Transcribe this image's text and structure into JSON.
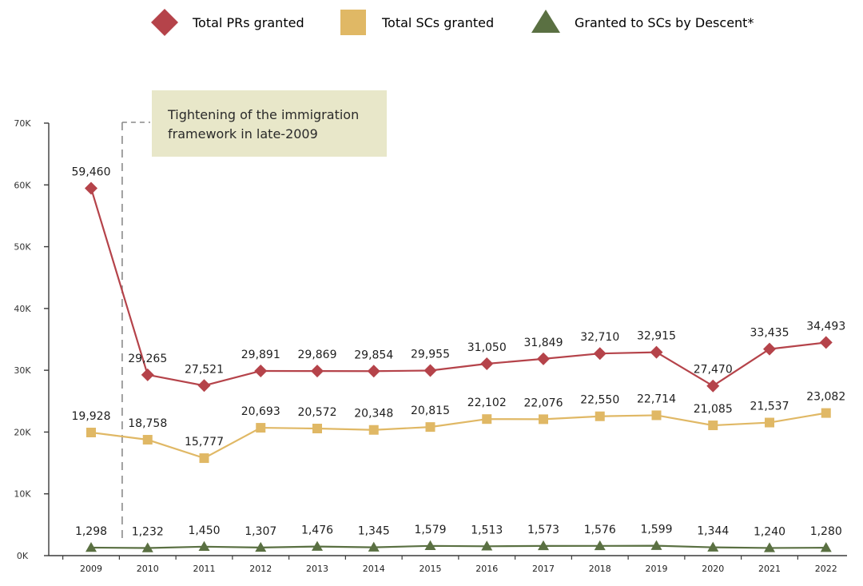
{
  "chart_data": {
    "type": "line",
    "title": "",
    "xlabel": "",
    "ylabel": "",
    "ylim": [
      0,
      70000
    ],
    "yticks": [
      0,
      10000,
      20000,
      30000,
      40000,
      50000,
      60000,
      70000
    ],
    "ytick_labels": [
      "0K",
      "10K",
      "20K",
      "30K",
      "40K",
      "50K",
      "60K",
      "70K"
    ],
    "categories": [
      "2009",
      "2010",
      "2011",
      "2012",
      "2013",
      "2014",
      "2015",
      "2016",
      "2017",
      "2018",
      "2019",
      "2020",
      "2021",
      "2022"
    ],
    "grid": false,
    "legend_position": "top",
    "series": [
      {
        "name": "Total PRs granted",
        "color": "#b5434a",
        "marker": "diamond",
        "values": [
          59460,
          29265,
          27521,
          29891,
          29869,
          29854,
          29955,
          31050,
          31849,
          32710,
          32915,
          27470,
          33435,
          34493
        ],
        "labels": [
          "59,460",
          "29,265",
          "27,521",
          "29,891",
          "29,869",
          "29,854",
          "29,955",
          "31,050",
          "31,849",
          "32,710",
          "32,915",
          "27,470",
          "33,435",
          "34,493"
        ]
      },
      {
        "name": "Total SCs granted",
        "color": "#e0b865",
        "marker": "square",
        "values": [
          19928,
          18758,
          15777,
          20693,
          20572,
          20348,
          20815,
          22102,
          22076,
          22550,
          22714,
          21085,
          21537,
          23082
        ],
        "labels": [
          "19,928",
          "18,758",
          "15,777",
          "20,693",
          "20,572",
          "20,348",
          "20,815",
          "22,102",
          "22,076",
          "22,550",
          "22,714",
          "21,085",
          "21,537",
          "23,082"
        ]
      },
      {
        "name": "Granted to SCs by Descent*",
        "color": "#5a7042",
        "marker": "triangle",
        "values": [
          1298,
          1232,
          1450,
          1307,
          1476,
          1345,
          1579,
          1513,
          1573,
          1576,
          1599,
          1344,
          1240,
          1280
        ],
        "labels": [
          "1,298",
          "1,232",
          "1,450",
          "1,307",
          "1,476",
          "1,345",
          "1,579",
          "1,513",
          "1,573",
          "1,576",
          "1,599",
          "1,344",
          "1,240",
          "1,280"
        ]
      }
    ],
    "annotations": [
      {
        "text_lines": [
          "Tightening of the immigration",
          "framework in late-2009"
        ],
        "between": [
          "2009",
          "2010"
        ],
        "background": "#e8e7c9"
      }
    ]
  }
}
